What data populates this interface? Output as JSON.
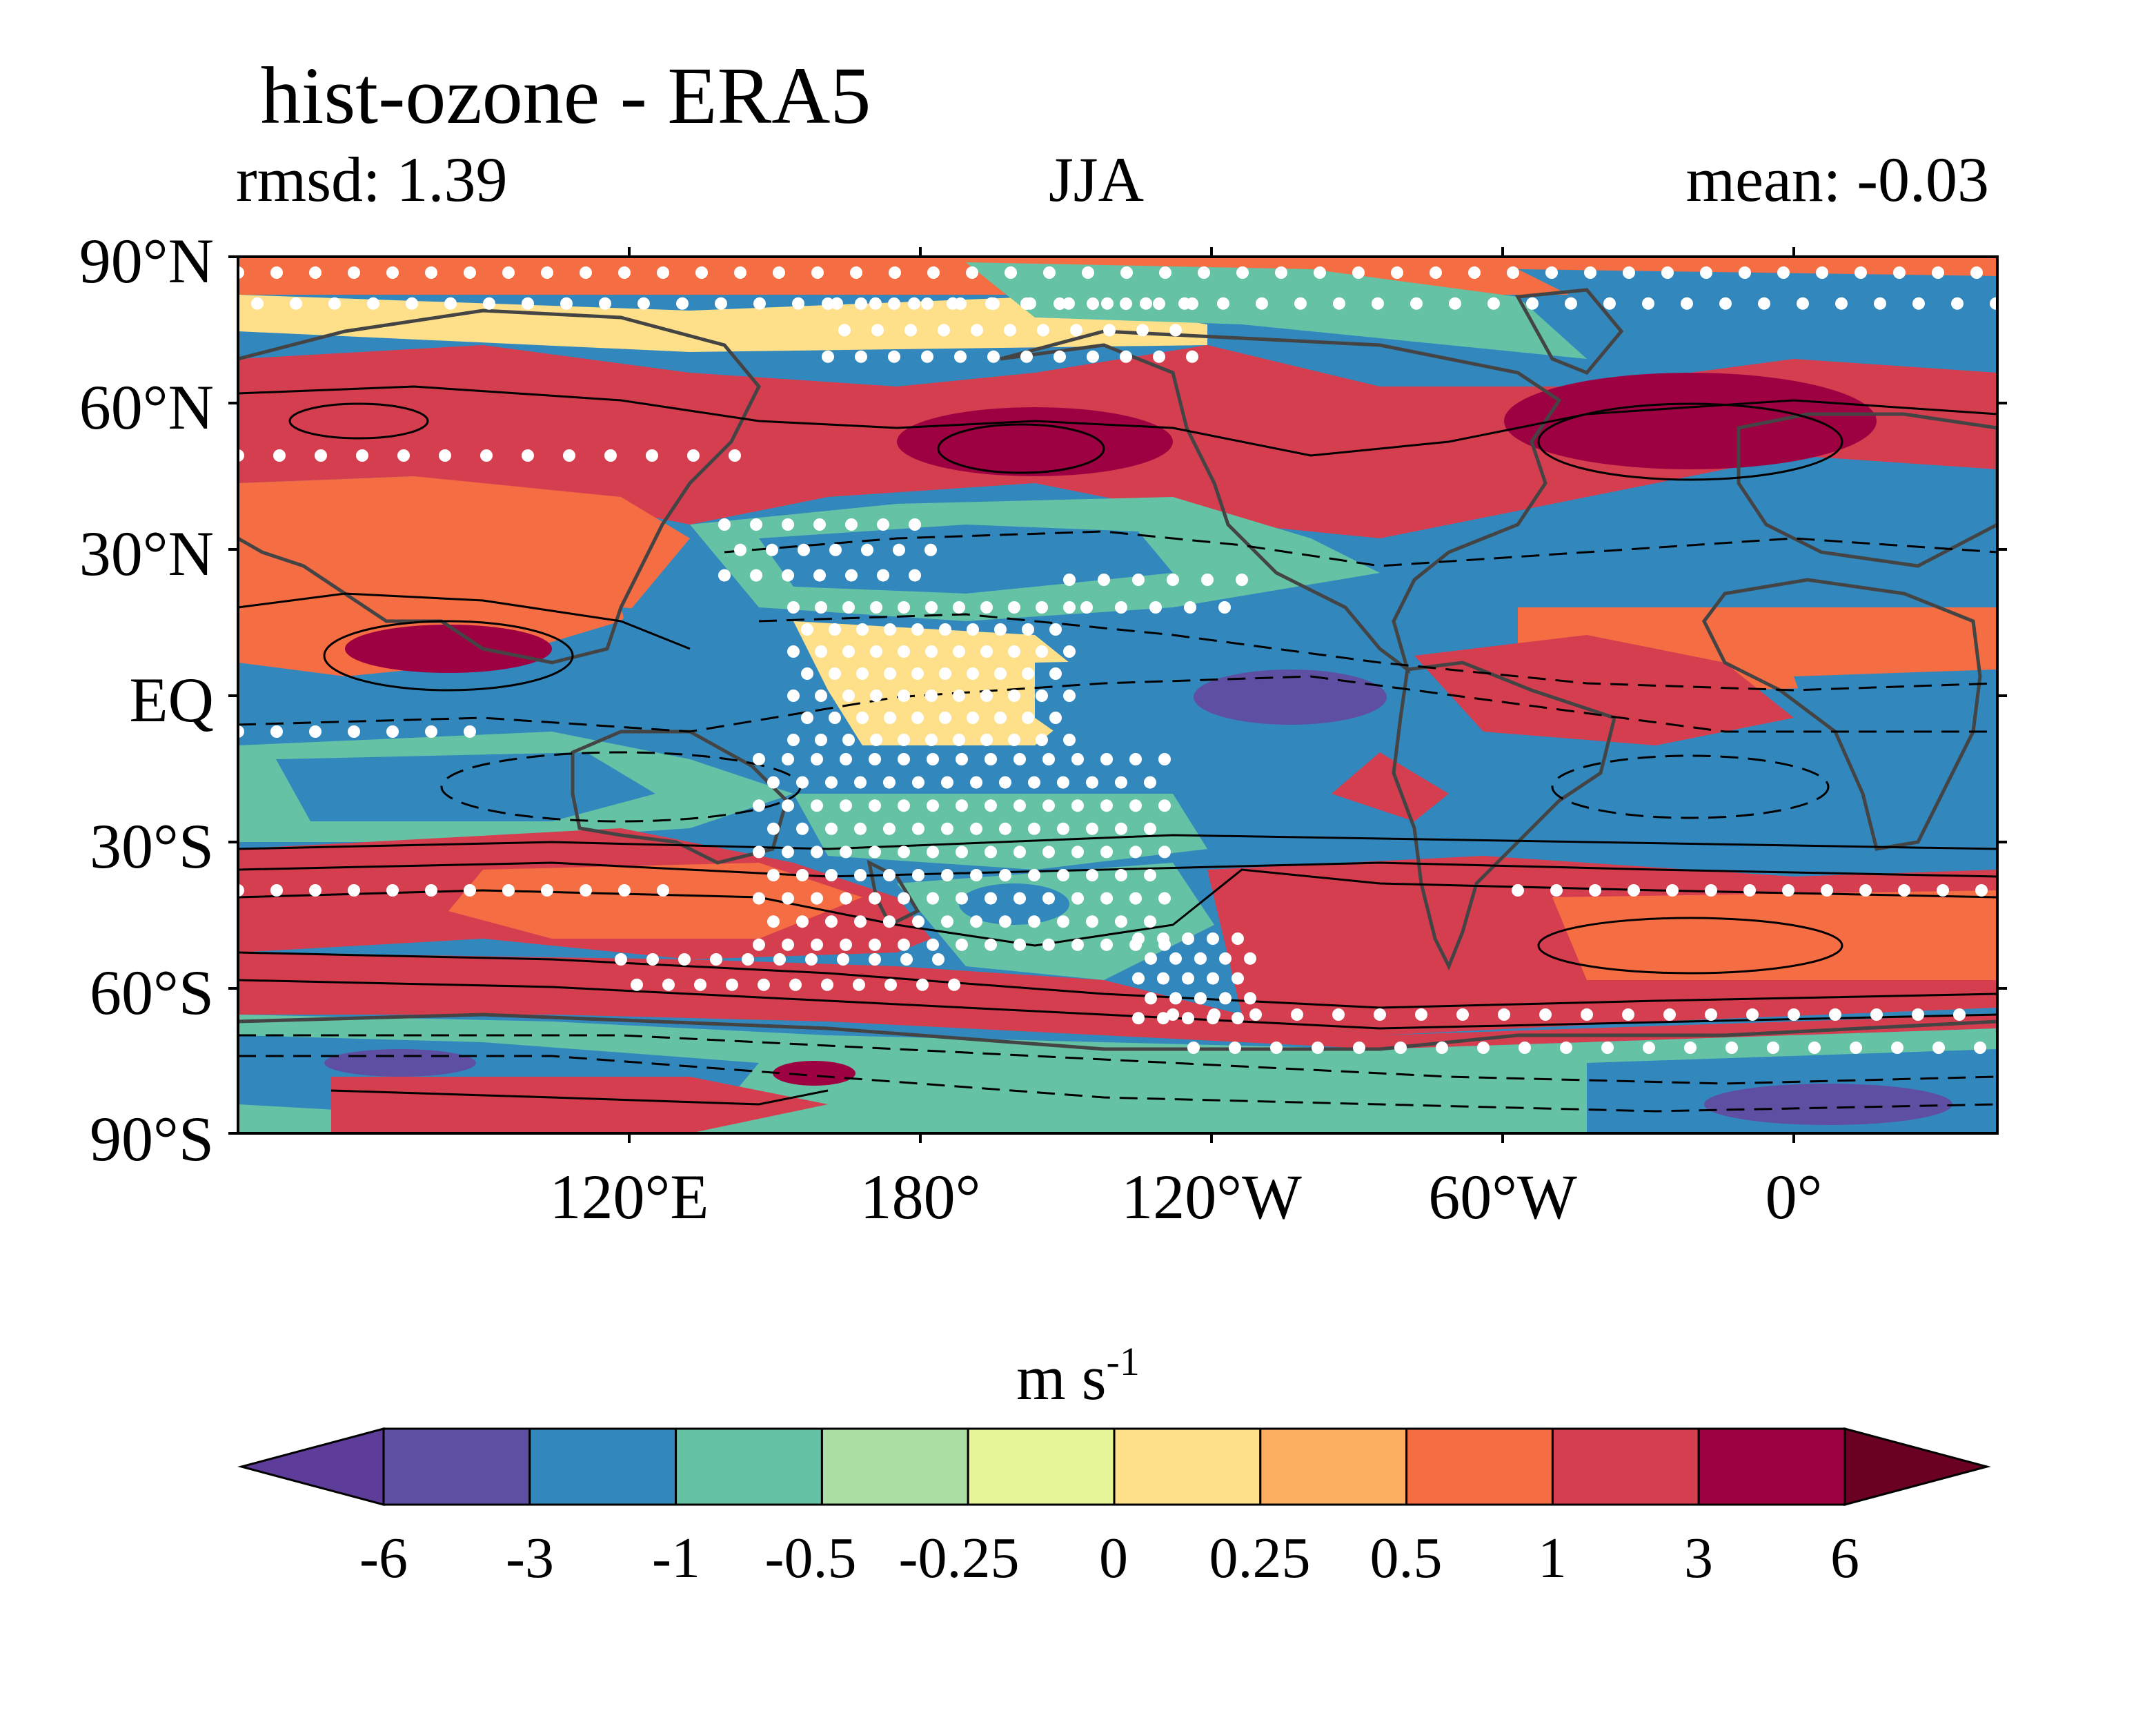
{
  "title": "hist-ozone - ERA5",
  "stat_left": "rmsd: 1.39",
  "season": "JJA",
  "stat_right": "mean: -0.03",
  "lat_labels": [
    "90°N",
    "60°N",
    "30°N",
    "EQ",
    "30°S",
    "60°S",
    "90°S"
  ],
  "lon_labels": [
    "120°E",
    "180°",
    "120°W",
    "60°W",
    "0°"
  ],
  "colorbar": {
    "units": "m s",
    "units_exponent": "-1",
    "tick_labels": [
      "-6",
      "-3",
      "-1",
      "-0.5",
      "-0.25",
      "0",
      "0.25",
      "0.5",
      "1",
      "3",
      "6"
    ],
    "colors": [
      "#5e3c99",
      "#5e4fa2",
      "#3288bd",
      "#66c2a5",
      "#abdda4",
      "#e6f598",
      "#fee08b",
      "#fdae61",
      "#f46d43",
      "#d53e4f",
      "#9e0142",
      "#6a0022"
    ],
    "extend": "both"
  },
  "map": {
    "projection": "equirectangular",
    "lon_range": [
      40,
      400
    ],
    "lat_range": [
      -90,
      90
    ],
    "stippling_color": "#ffffff",
    "coastline_color": "#444444",
    "contour_color": "#000000"
  }
}
